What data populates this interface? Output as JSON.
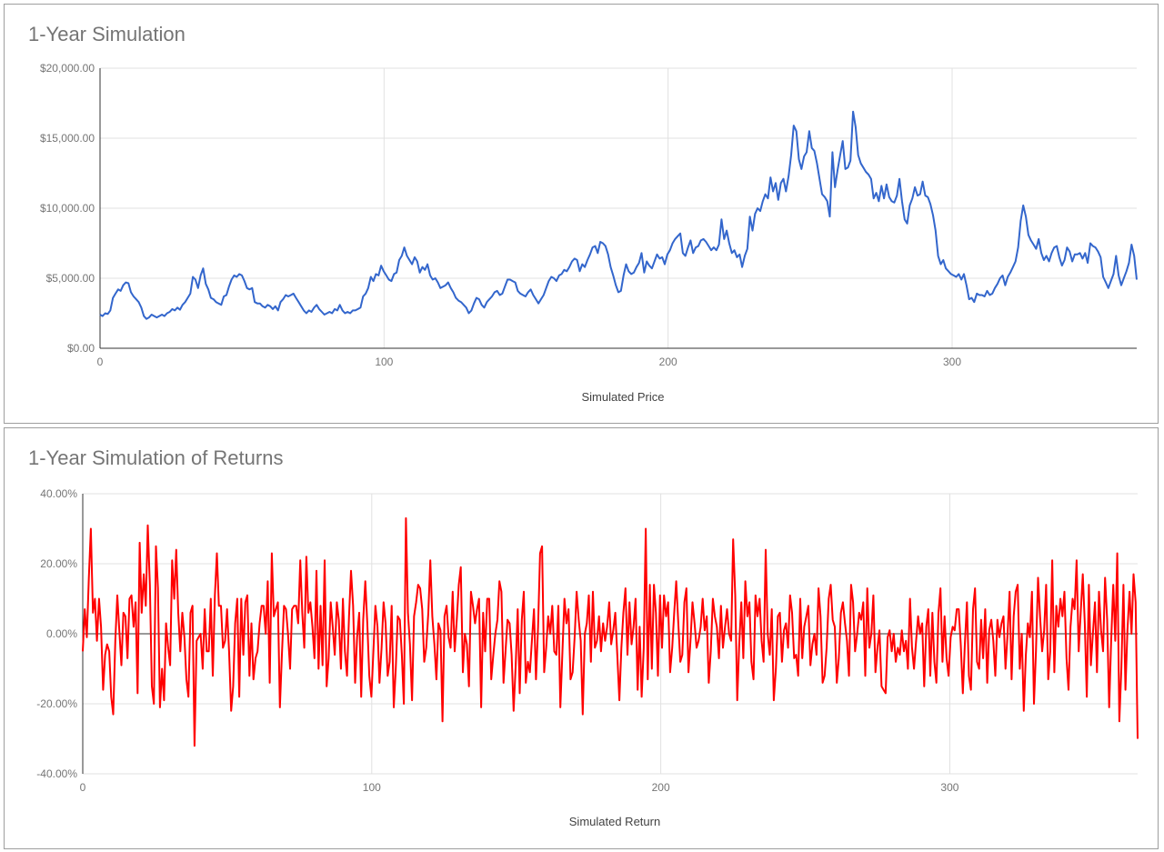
{
  "chart_data": [
    {
      "type": "line",
      "title": "1-Year Simulation",
      "xlabel": "Simulated Price",
      "ylabel": "",
      "xlim": [
        0,
        365
      ],
      "ylim": [
        0,
        20000
      ],
      "x_ticks": [
        0,
        100,
        200,
        300
      ],
      "y_ticks": [
        0,
        5000,
        10000,
        15000,
        20000
      ],
      "y_tick_labels": [
        "$0.00",
        "$5,000.00",
        "$10,000.00",
        "$15,000.00",
        "$20,000.00"
      ],
      "grid": true,
      "legend": "none",
      "color": "#3366cc",
      "series": [
        {
          "values": [
            2400,
            2300,
            2500,
            2450,
            2700,
            3600,
            3900,
            4200,
            4100,
            4500,
            4700,
            4650,
            4000,
            3700,
            3500,
            3300,
            2900,
            2300,
            2100,
            2200,
            2400,
            2300,
            2200,
            2300,
            2400,
            2300,
            2500,
            2600,
            2800,
            2700,
            2900,
            2750,
            3100,
            3300,
            3600,
            3900,
            5100,
            4900,
            4300,
            5200,
            5700,
            4600,
            4200,
            3600,
            3500,
            3300,
            3200,
            3100,
            3700,
            3800,
            4400,
            4900,
            5200,
            5100,
            5300,
            5200,
            4800,
            4300,
            4200,
            4300,
            3300,
            3200,
            3200,
            3000,
            2900,
            3100,
            3000,
            2800,
            3000,
            2700,
            3300,
            3500,
            3800,
            3700,
            3800,
            3900,
            3600,
            3300,
            3000,
            2700,
            2500,
            2700,
            2600,
            2900,
            3100,
            2800,
            2600,
            2400,
            2500,
            2600,
            2500,
            2800,
            2700,
            3100,
            2700,
            2500,
            2600,
            2500,
            2700,
            2700,
            2800,
            2900,
            3700,
            3900,
            4300,
            5100,
            4800,
            5300,
            5200,
            5900,
            5500,
            5200,
            4900,
            4800,
            5300,
            5400,
            6300,
            6600,
            7200,
            6600,
            6300,
            6000,
            6500,
            6200,
            5400,
            5800,
            5600,
            6000,
            5200,
            4900,
            5000,
            4700,
            4300,
            4400,
            4500,
            4700,
            4300,
            4000,
            3600,
            3400,
            3300,
            3100,
            2900,
            2500,
            2700,
            3200,
            3600,
            3500,
            3100,
            2900,
            3300,
            3500,
            3700,
            4000,
            4100,
            3800,
            3900,
            4400,
            4900,
            4900,
            4800,
            4700,
            4100,
            3900,
            3800,
            3700,
            4000,
            4200,
            3800,
            3500,
            3200,
            3500,
            3800,
            4300,
            4800,
            5100,
            5000,
            4800,
            5200,
            5300,
            5600,
            5500,
            5800,
            6200,
            6400,
            6300,
            5500,
            6000,
            5800,
            6300,
            6700,
            7200,
            7300,
            6800,
            7600,
            7500,
            7300,
            6700,
            5800,
            5200,
            4500,
            4000,
            4100,
            5200,
            6000,
            5500,
            5300,
            5400,
            5800,
            6100,
            6800,
            5400,
            6200,
            5900,
            5700,
            6200,
            6700,
            6400,
            6500,
            6000,
            6700,
            7000,
            7500,
            7800,
            8000,
            8200,
            6800,
            6600,
            7200,
            7700,
            6800,
            7200,
            7300,
            7700,
            7800,
            7600,
            7300,
            7000,
            7200,
            7000,
            7400,
            9200,
            7800,
            8400,
            7500,
            6800,
            7000,
            6500,
            6700,
            5800,
            6600,
            7100,
            9400,
            8400,
            9600,
            10000,
            9800,
            10500,
            11000,
            10700,
            12200,
            11200,
            11800,
            10600,
            11800,
            12100,
            11200,
            12300,
            13800,
            15900,
            15500,
            13500,
            12800,
            13700,
            14000,
            15500,
            14300,
            14100,
            13200,
            12100,
            11000,
            10800,
            10500,
            9400,
            14000,
            11500,
            12700,
            13800,
            14800,
            12800,
            12900,
            13400,
            16900,
            15800,
            13800,
            13200,
            12900,
            12600,
            12400,
            12100,
            10700,
            11100,
            10500,
            11600,
            10700,
            11700,
            10800,
            10500,
            10400,
            10900,
            12100,
            10500,
            9200,
            8900,
            10200,
            10700,
            11500,
            10900,
            11000,
            11900,
            10900,
            10800,
            10300,
            9500,
            8400,
            6600,
            6000,
            6300,
            5700,
            5500,
            5300,
            5200,
            5100,
            5300,
            4900,
            5300,
            4500,
            3500,
            3600,
            3300,
            3900,
            3800,
            3800,
            3700,
            4100,
            3800,
            3900,
            4300,
            4600,
            5000,
            5200,
            4500,
            5100,
            5400,
            5800,
            6200,
            7200,
            9100,
            10200,
            9400,
            8100,
            7700,
            7400,
            7100,
            7800,
            6800,
            6300,
            6600,
            6200,
            6800,
            7200,
            7300,
            6500,
            5900,
            6300,
            7200,
            6900,
            6200,
            6700,
            6700,
            6800,
            6400,
            6800,
            6100,
            7500,
            7300,
            7200,
            6900,
            6500,
            5100,
            4700,
            4300,
            4800,
            5300,
            6600,
            5200,
            4500,
            5000,
            5500,
            6100,
            7400,
            6600,
            4900
          ]
        }
      ]
    },
    {
      "type": "line",
      "title": "1-Year Simulation of Returns",
      "xlabel": "Simulated Return",
      "ylabel": "",
      "xlim": [
        0,
        365
      ],
      "ylim": [
        -0.4,
        0.4
      ],
      "x_ticks": [
        0,
        100,
        200,
        300
      ],
      "y_ticks": [
        -0.4,
        -0.2,
        0,
        0.2,
        0.4
      ],
      "y_tick_labels": [
        "-40.00%",
        "-20.00%",
        "0.00%",
        "20.00%",
        "40.00%"
      ],
      "grid": true,
      "legend": "none",
      "color": "#ff0000",
      "series": [
        {
          "values": [
            -0.05,
            0.07,
            -0.01,
            0.16,
            0.3,
            0.06,
            0.1,
            -0.02,
            0.1,
            0.02,
            -0.16,
            -0.06,
            -0.03,
            -0.05,
            -0.18,
            -0.23,
            -0.02,
            0.11,
            0.01,
            -0.09,
            0.06,
            0.05,
            -0.07,
            0.1,
            0.11,
            0.02,
            0.09,
            -0.17,
            0.26,
            0.06,
            0.17,
            0.08,
            0.31,
            0.14,
            -0.15,
            -0.2,
            0.25,
            0.13,
            -0.21,
            -0.1,
            -0.19,
            0.03,
            -0.04,
            -0.09,
            0.21,
            0.1,
            0.24,
            0.06,
            -0.05,
            0.06,
            -0.01,
            -0.13,
            -0.18,
            0.06,
            0.08,
            -0.32,
            -0.02,
            -0.01,
            0.0,
            -0.1,
            0.07,
            -0.05,
            -0.05,
            0.1,
            -0.12,
            0.11,
            0.23,
            0.08,
            0.08,
            -0.04,
            -0.02,
            0.07,
            -0.05,
            -0.22,
            -0.15,
            0.03,
            0.1,
            -0.18,
            0.1,
            -0.06,
            0.09,
            0.11,
            -0.12,
            0.03,
            -0.13,
            -0.07,
            -0.05,
            0.03,
            0.08,
            0.08,
            0.0,
            0.15,
            -0.14,
            0.23,
            0.05,
            0.07,
            0.09,
            -0.21,
            -0.06,
            0.08,
            0.07,
            0.0,
            -0.1,
            0.07,
            0.08,
            0.08,
            0.03,
            0.21,
            0.06,
            -0.04,
            0.22,
            0.06,
            0.09,
            0.02,
            -0.07,
            0.18,
            -0.1,
            0.08,
            -0.09,
            0.21,
            -0.15,
            -0.07,
            0.09,
            0.02,
            -0.06,
            0.09,
            0.04,
            -0.1,
            0.1,
            -0.05,
            -0.12,
            0.05,
            0.18,
            0.08,
            -0.14,
            -0.01,
            0.06,
            -0.18,
            0.04,
            0.15,
            0.03,
            -0.12,
            -0.18,
            -0.05,
            0.08,
            0.02,
            -0.14,
            -0.04,
            0.09,
            0.03,
            -0.12,
            -0.08,
            0.08,
            -0.21,
            -0.1,
            0.05,
            0.04,
            -0.06,
            -0.2,
            0.33,
            0.06,
            -0.03,
            -0.19,
            0.05,
            0.09,
            0.14,
            0.13,
            0.07,
            -0.08,
            -0.04,
            0.06,
            0.21,
            0.05,
            -0.03,
            -0.13,
            0.03,
            0.01,
            -0.25,
            0.05,
            0.08,
            -0.01,
            -0.04,
            0.12,
            -0.05,
            0.04,
            0.14,
            0.19,
            -0.11,
            0.0,
            -0.03,
            -0.15,
            0.12,
            0.08,
            0.03,
            0.07,
            0.1,
            -0.21,
            0.06,
            -0.05,
            0.1,
            0.1,
            -0.13,
            -0.06,
            0.0,
            0.04,
            0.15,
            0.12,
            -0.14,
            -0.05,
            0.04,
            0.03,
            -0.06,
            -0.22,
            -0.09,
            0.07,
            -0.17,
            0.04,
            0.12,
            -0.14,
            -0.08,
            -0.11,
            -0.02,
            0.07,
            -0.13,
            0.02,
            0.23,
            0.25,
            -0.11,
            -0.04,
            0.05,
            0.0,
            0.08,
            -0.05,
            -0.06,
            0.08,
            -0.21,
            -0.05,
            0.1,
            0.03,
            0.07,
            -0.13,
            -0.11,
            -0.01,
            0.12,
            0.04,
            -0.02,
            -0.23,
            0.0,
            0.03,
            0.11,
            -0.08,
            0.12,
            -0.04,
            -0.02,
            0.05,
            -0.05,
            0.03,
            -0.02,
            0.02,
            0.09,
            -0.03,
            0.01,
            0.06,
            -0.06,
            -0.19,
            -0.04,
            0.06,
            0.13,
            -0.06,
            0.09,
            -0.03,
            0.02,
            0.1,
            -0.16,
            0.02,
            -0.18,
            -0.04,
            0.3,
            -0.13,
            0.14,
            -0.1,
            0.14,
            0.06,
            -0.12,
            0.11,
            -0.04,
            0.11,
            0.05,
            0.09,
            -0.11,
            -0.04,
            0.06,
            0.15,
            0.03,
            -0.08,
            -0.06,
            0.09,
            0.13,
            -0.11,
            -0.02,
            0.09,
            0.03,
            -0.04,
            -0.02,
            0.02,
            0.1,
            0.01,
            0.05,
            -0.14,
            -0.05,
            0.1,
            0.05,
            0.02,
            -0.07,
            0.08,
            -0.04,
            0.02,
            0.07,
            0.0,
            -0.02,
            0.27,
            0.11,
            -0.19,
            -0.03,
            0.09,
            -0.07,
            0.15,
            0.05,
            0.09,
            -0.08,
            -0.13,
            0.11,
            0.05,
            0.1,
            -0.02,
            -0.08,
            0.24,
            0.0,
            -0.06,
            0.07,
            -0.19,
            -0.1,
            0.05,
            0.06,
            -0.08,
            0.01,
            0.03,
            -0.04,
            0.11,
            0.06,
            -0.07,
            -0.06,
            -0.12,
            0.1,
            -0.07,
            0.02,
            0.05,
            0.08,
            -0.09,
            -0.03,
            0.0,
            -0.06,
            0.13,
            0.05,
            -0.14,
            -0.12,
            -0.04,
            0.1,
            0.14,
            0.04,
            0.02,
            -0.14,
            -0.07,
            0.06,
            0.09,
            0.03,
            -0.02,
            -0.12,
            0.14,
            0.09,
            -0.05,
            0.0,
            0.06,
            0.04,
            0.09,
            -0.12,
            0.13,
            -0.04,
            0.0,
            0.11,
            -0.11,
            -0.04,
            0.01,
            -0.15,
            -0.16,
            -0.17,
            -0.01,
            0.01,
            -0.05,
            0.0,
            -0.08,
            -0.04,
            -0.06,
            0.01,
            -0.05,
            -0.02,
            -0.1,
            0.1,
            -0.04,
            -0.1,
            -0.02,
            0.05,
            0.0,
            0.03,
            -0.15,
            0.02,
            0.07,
            -0.12,
            0.06,
            -0.08,
            -0.14,
            0.06,
            0.13,
            -0.08,
            0.05,
            -0.07,
            -0.12,
            -0.01,
            0.02,
            0.01,
            0.07,
            0.07,
            -0.03,
            -0.17,
            -0.03,
            0.09,
            -0.12,
            -0.16,
            0.07,
            0.13,
            -0.08,
            -0.1,
            0.04,
            -0.07,
            0.07,
            -0.14,
            0.01,
            0.04,
            -0.02,
            -0.12,
            0.04,
            -0.01,
            0.03,
            0.05,
            -0.1,
            0.0,
            0.12,
            -0.13,
            0.05,
            0.12,
            0.14,
            -0.1,
            0.0,
            -0.22,
            -0.06,
            0.03,
            -0.01,
            0.12,
            -0.2,
            -0.05,
            0.16,
            0.05,
            -0.05,
            0.01,
            0.14,
            -0.13,
            -0.05,
            0.21,
            -0.11,
            0.08,
            0.02,
            0.1,
            0.05,
            0.12,
            -0.07,
            -0.16,
            0.02,
            0.1,
            0.07,
            0.21,
            -0.05,
            0.06,
            0.17,
            0.03,
            -0.18,
            0.14,
            -0.09,
            0.0,
            0.09,
            -0.11,
            0.12,
            0.01,
            -0.05,
            0.16,
            0.04,
            -0.21,
            -0.02,
            0.14,
            -0.02,
            0.23,
            -0.25,
            -0.1,
            0.14,
            -0.16,
            0.01,
            0.12,
            0.0,
            0.17,
            0.09,
            -0.3
          ]
        }
      ]
    }
  ]
}
